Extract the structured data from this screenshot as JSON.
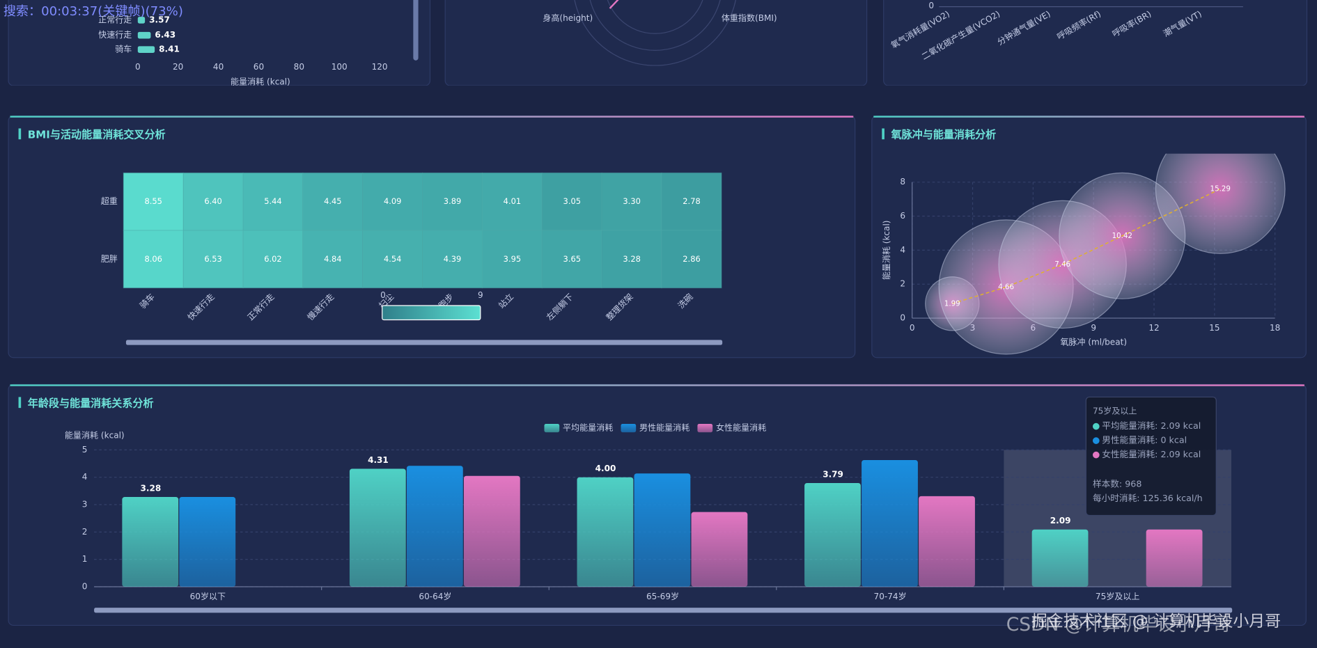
{
  "overlay_text": "搜索：00:03:37(关键帧)(73%)",
  "watermark": [
    "掘金技术社区 @ 计算机毕设小月哥",
    "CSDN @计算机毕设小月哥"
  ],
  "chart_data": [
    {
      "type": "hbar",
      "categories": [
        "正常行走",
        "快速行走",
        "骑车"
      ],
      "values": [
        3.57,
        6.43,
        8.41
      ],
      "xlim": [
        0,
        130
      ],
      "xticks": [
        0,
        20,
        40,
        60,
        80,
        100,
        120
      ],
      "xlabel": "能量消耗 (kcal)",
      "color": "#5fd3c8"
    },
    {
      "type": "radar",
      "indicators": [
        "身高(height)",
        "体重指数(BMI)"
      ],
      "color": "#e377c2"
    },
    {
      "type": "bar",
      "categories": [
        "氧气消耗量(VO2)",
        "二氧化碳产生量(VCO2)",
        "分钟通气量(VE)",
        "呼吸频率(Rf)",
        "呼吸率(BR)",
        "潮气量(VT)"
      ],
      "yticks": [
        0
      ]
    },
    {
      "type": "heatmap",
      "title": "BMI与活动能量消耗交叉分析",
      "x_categories": [
        "骑车",
        "快速行走",
        "正常行走",
        "慢速行走",
        "扫尘",
        "跑步",
        "站立",
        "左侧躺下",
        "整理货架",
        "洗碗"
      ],
      "y_categories": [
        "超重",
        "肥胖"
      ],
      "values": [
        [
          8.55,
          6.4,
          5.44,
          4.45,
          4.09,
          3.89,
          4.01,
          3.05,
          3.3,
          2.78
        ],
        [
          8.06,
          6.53,
          6.02,
          4.84,
          4.54,
          4.39,
          3.95,
          3.65,
          3.28,
          2.86
        ]
      ],
      "value_labels": [
        [
          "8.55",
          "6.40",
          "5.44",
          "4.45",
          "4.09",
          "3.89",
          "4.01",
          "3.05",
          "3.30",
          "2.78"
        ],
        [
          "8.06",
          "6.53",
          "6.02",
          "4.84",
          "4.54",
          "4.39",
          "3.95",
          "3.65",
          "3.28",
          "2.86"
        ]
      ],
      "visual_map": {
        "range": [
          0,
          9
        ],
        "colors": [
          "#2f7f8a",
          "#5ce0d2"
        ]
      }
    },
    {
      "type": "bubble",
      "title": "氧脉冲与能量消耗分析",
      "xlabel": "氧脉冲 (ml/beat)",
      "ylabel": "能量消耗 (kcal)",
      "x": [
        1.99,
        4.66,
        7.46,
        10.42,
        15.29
      ],
      "values": [
        0.85,
        1.83,
        3.16,
        4.84,
        7.6
      ],
      "sizes": [
        32,
        80,
        76,
        75,
        77
      ],
      "xlim": [
        0,
        18
      ],
      "xticks": [
        0,
        3,
        6,
        9,
        12,
        15,
        18
      ],
      "ylim": [
        0,
        8
      ],
      "yticks": [
        0,
        2,
        4,
        6,
        8
      ],
      "color": "#e377c2",
      "trend_color": "#e0b030",
      "grid": true
    },
    {
      "type": "grouped_bar",
      "title": "年龄段与能量消耗关系分析",
      "ylabel": "能量消耗 (kcal)",
      "categories": [
        "60岁以下",
        "60-64岁",
        "65-69岁",
        "70-74岁",
        "75岁及以上"
      ],
      "series": [
        {
          "name": "平均能量消耗",
          "color": "#4fd1c5",
          "values": [
            3.28,
            4.31,
            4.0,
            3.79,
            2.09
          ],
          "value_labels": [
            "3.28",
            "4.31",
            "4.00",
            "3.79",
            "2.09"
          ]
        },
        {
          "name": "男性能量消耗",
          "color": "#1a8fe0",
          "values": [
            3.28,
            4.42,
            4.14,
            4.63,
            0
          ]
        },
        {
          "name": "女性能量消耗",
          "color": "#e377c2",
          "values": [
            null,
            4.05,
            2.73,
            3.31,
            2.09
          ]
        }
      ],
      "ylim": [
        0,
        5
      ],
      "yticks": [
        0,
        1,
        2,
        3,
        4,
        5
      ],
      "grid": true,
      "highlight": 4,
      "tooltip": {
        "title": "75岁及以上",
        "lines": [
          "平均能量消耗: 2.09 kcal",
          "男性能量消耗: 0 kcal",
          "女性能量消耗: 2.09 kcal",
          "样本数: 968",
          "每小时消耗: 125.36 kcal/h"
        ]
      }
    }
  ]
}
